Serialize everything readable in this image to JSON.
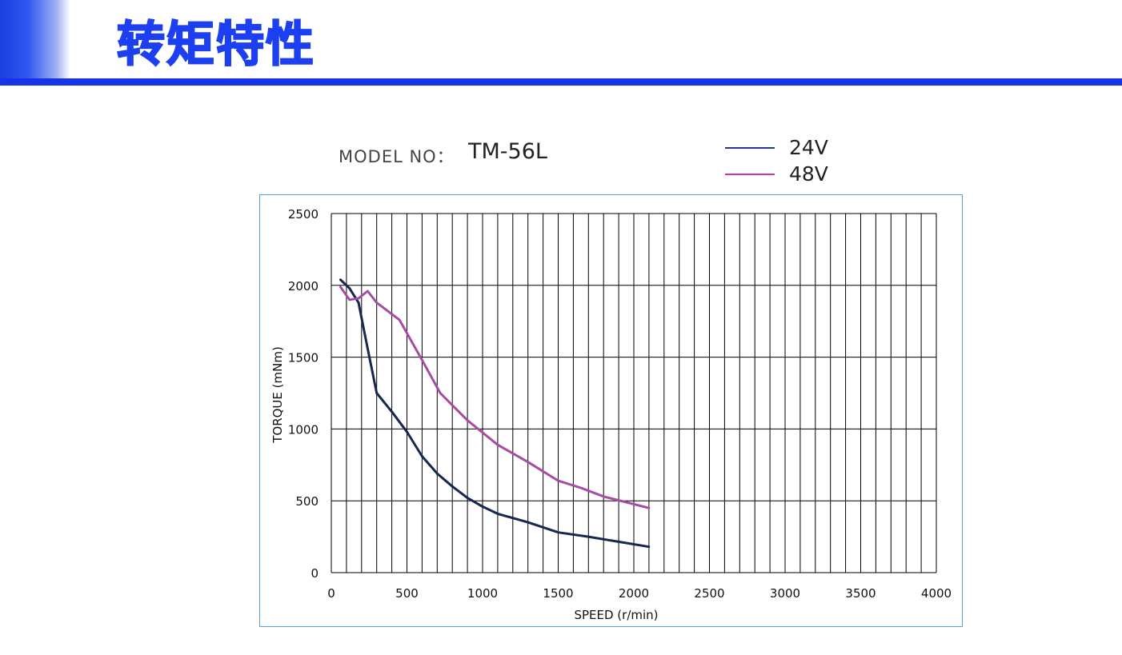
{
  "header": {
    "title": "转矩特性",
    "accent_color": "#1733e8"
  },
  "model": {
    "label": "MODEL NO：",
    "value": "TM-56L"
  },
  "legend": [
    {
      "label": "24V",
      "color": "#1f3a8a"
    },
    {
      "label": "48V",
      "color": "#d0359c"
    }
  ],
  "chart_data": {
    "type": "line",
    "xlabel": "SPEED (r/min)",
    "ylabel": "TORQUE (mNm)",
    "xlim": [
      0,
      4000
    ],
    "ylim": [
      0,
      2500
    ],
    "x_ticks": [
      "0",
      "500",
      "1000",
      "1500",
      "2000",
      "2500",
      "3000",
      "3500",
      "4000"
    ],
    "y_ticks": [
      "0",
      "500",
      "1000",
      "1500",
      "2000",
      "2500"
    ],
    "grid": true,
    "series": [
      {
        "name": "24V",
        "color": "#16284f",
        "points": [
          [
            60,
            2040
          ],
          [
            120,
            1980
          ],
          [
            180,
            1880
          ],
          [
            240,
            1560
          ],
          [
            300,
            1250
          ],
          [
            400,
            1120
          ],
          [
            500,
            980
          ],
          [
            600,
            810
          ],
          [
            700,
            690
          ],
          [
            800,
            600
          ],
          [
            900,
            520
          ],
          [
            1000,
            460
          ],
          [
            1100,
            410
          ],
          [
            1300,
            350
          ],
          [
            1500,
            280
          ],
          [
            1700,
            250
          ],
          [
            1900,
            215
          ],
          [
            2100,
            180
          ]
        ]
      },
      {
        "name": "48V",
        "color": "#a64ca3",
        "points": [
          [
            60,
            1990
          ],
          [
            120,
            1900
          ],
          [
            180,
            1910
          ],
          [
            240,
            1960
          ],
          [
            300,
            1880
          ],
          [
            450,
            1760
          ],
          [
            600,
            1480
          ],
          [
            720,
            1250
          ],
          [
            900,
            1060
          ],
          [
            1100,
            890
          ],
          [
            1300,
            770
          ],
          [
            1500,
            640
          ],
          [
            1650,
            590
          ],
          [
            1800,
            530
          ],
          [
            2100,
            450
          ]
        ]
      }
    ]
  }
}
